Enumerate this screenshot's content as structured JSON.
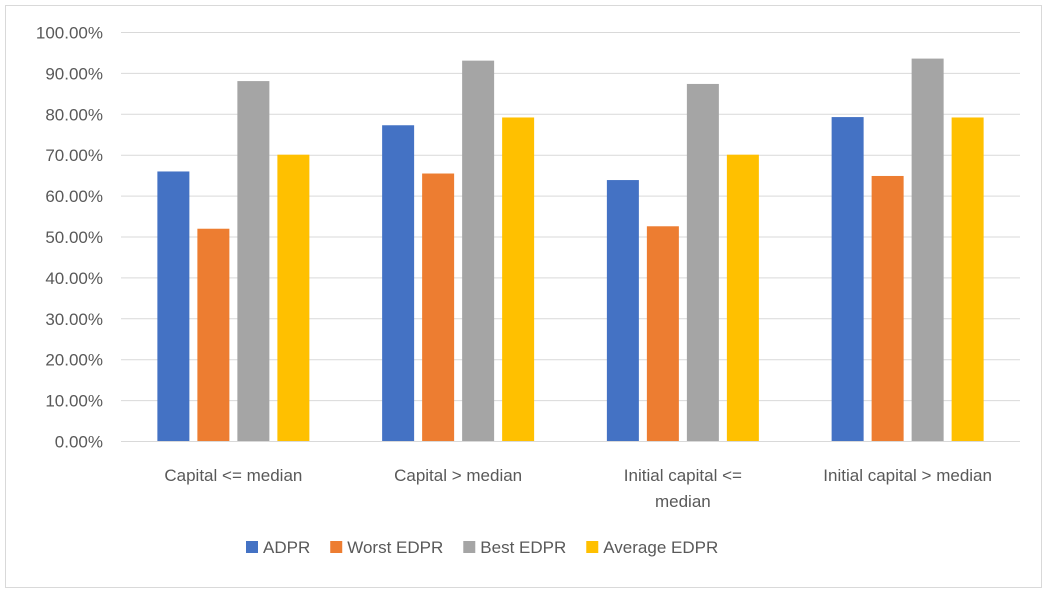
{
  "chart_data": {
    "type": "bar",
    "title": "",
    "xlabel": "",
    "ylabel": "",
    "ylim": [
      0,
      1
    ],
    "yticks": [
      "0.00%",
      "10.00%",
      "20.00%",
      "30.00%",
      "40.00%",
      "50.00%",
      "60.00%",
      "70.00%",
      "80.00%",
      "90.00%",
      "100.00%"
    ],
    "grid": true,
    "legend_position": "bottom",
    "categories": [
      [
        "Capital <= median"
      ],
      [
        "Capital > median"
      ],
      [
        "Initial capital <=",
        "median"
      ],
      [
        "Initial capital > median"
      ]
    ],
    "series": [
      {
        "name": "ADPR",
        "color": "#4472c4",
        "values": [
          0.659,
          0.772,
          0.638,
          0.792
        ]
      },
      {
        "name": "Worst EDPR",
        "color": "#ed7d31",
        "values": [
          0.519,
          0.654,
          0.525,
          0.648
        ]
      },
      {
        "name": "Best EDPR",
        "color": "#a5a5a5",
        "values": [
          0.88,
          0.93,
          0.873,
          0.935
        ]
      },
      {
        "name": "Average EDPR",
        "color": "#ffc000",
        "values": [
          0.7,
          0.791,
          0.7,
          0.791
        ]
      }
    ]
  }
}
